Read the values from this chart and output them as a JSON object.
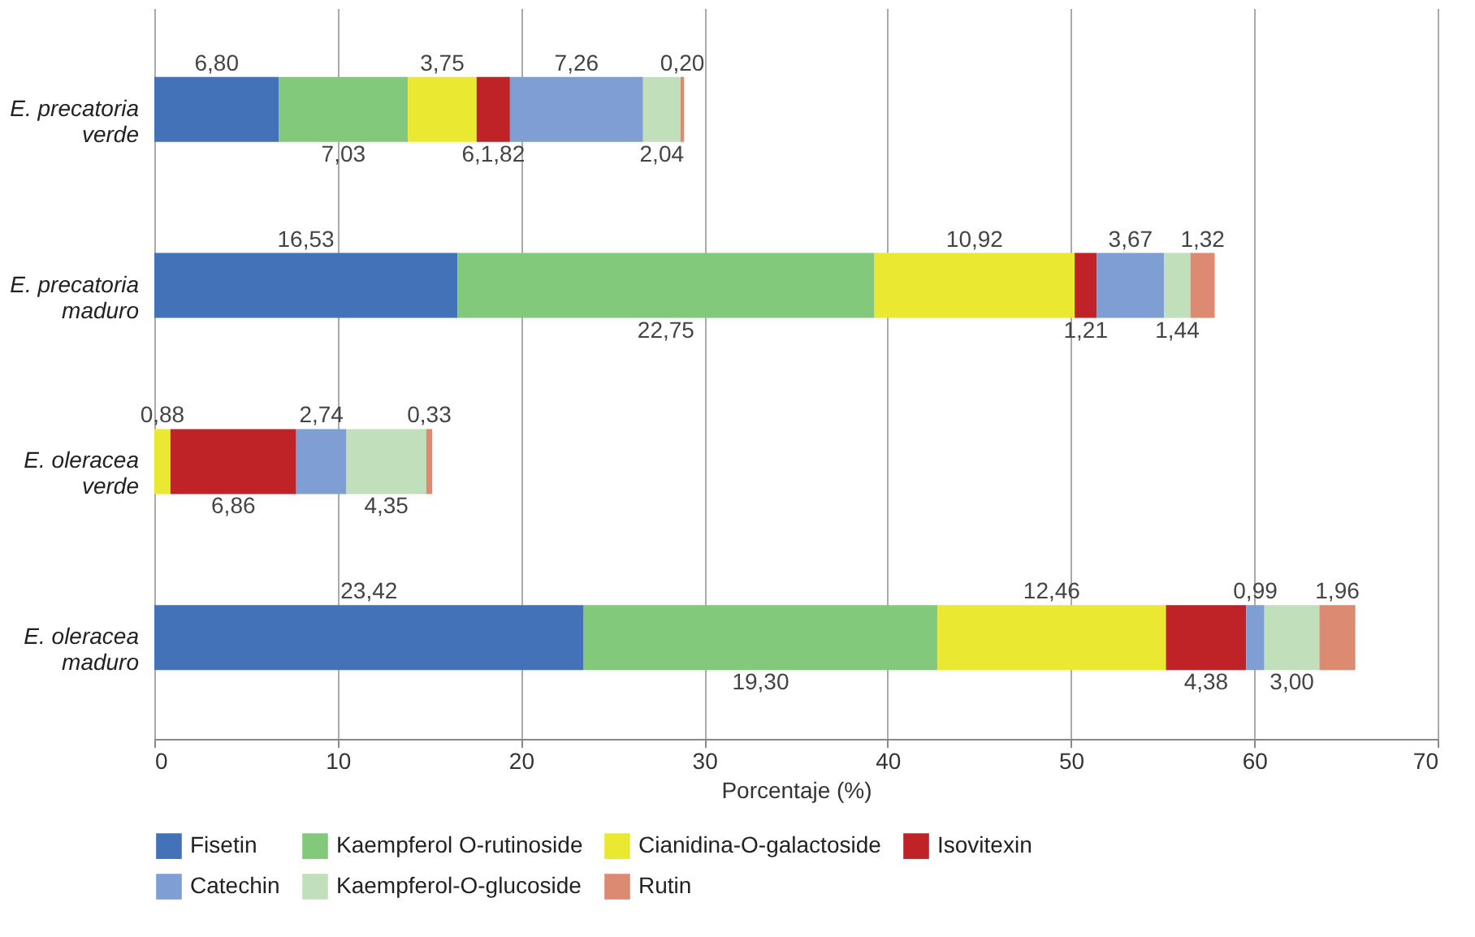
{
  "chart_data": {
    "type": "bar",
    "orientation": "horizontal",
    "stacked": true,
    "categories": [
      "E. precatoria verde",
      "E. precatoria maduro",
      "E. oleracea verde",
      "E. oleracea maduro"
    ],
    "series": [
      {
        "name": "Fisetin",
        "color": "#4472b8",
        "values": [
          6.8,
          16.53,
          null,
          23.42
        ],
        "value_labels": [
          "6,80",
          "16,53",
          null,
          "23,42"
        ]
      },
      {
        "name": "Kaempferol O-rutinoside",
        "color": "#83c97c",
        "values": [
          7.03,
          22.75,
          null,
          19.3
        ],
        "value_labels": [
          "7,03",
          "22,75",
          null,
          "19,30"
        ]
      },
      {
        "name": "Cianidina-O-galactoside",
        "color": "#ebe831",
        "values": [
          3.75,
          10.92,
          0.88,
          12.46
        ],
        "value_labels": [
          "3,75",
          "10,92",
          "0,88",
          "12,46"
        ]
      },
      {
        "name": "Isovitexin",
        "color": "#c02327",
        "values": [
          1.82,
          1.21,
          6.86,
          4.38
        ],
        "value_labels": [
          "6,1,82",
          "1,21",
          "6,86",
          "4,38"
        ]
      },
      {
        "name": "Catechin",
        "color": "#7f9fd4",
        "values": [
          7.26,
          3.67,
          2.74,
          0.99
        ],
        "value_labels": [
          "7,26",
          "3,67",
          "2,74",
          "0,99"
        ]
      },
      {
        "name": "Kaempferol-O-glucoside",
        "color": "#c1dfbb",
        "values": [
          2.04,
          1.44,
          4.35,
          3.0
        ],
        "value_labels": [
          "2,04",
          "1,44",
          "4,35",
          "3,00"
        ]
      },
      {
        "name": "Rutin",
        "color": "#dd8a72",
        "values": [
          0.2,
          1.32,
          0.33,
          1.96
        ],
        "value_labels": [
          "0,20",
          "1,32",
          "0,33",
          "1,96"
        ]
      }
    ],
    "xlabel": "Porcentaje (%)",
    "xlim": [
      0,
      70
    ],
    "xticks": [
      0,
      10,
      20,
      30,
      40,
      50,
      60,
      70
    ],
    "grid": "x",
    "legend": "bottom"
  }
}
